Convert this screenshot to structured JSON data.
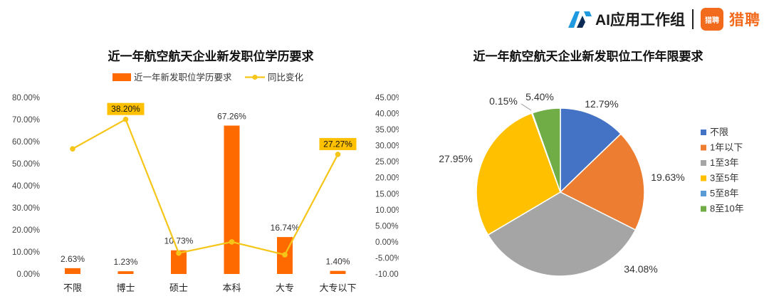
{
  "header": {
    "ai_group": "AI应用工作组",
    "liepin_badge": "猎聘",
    "liepin_name": "猎聘"
  },
  "chart_data": [
    {
      "type": "bar",
      "title": "近一年航空航天企业新发职位学历要求",
      "categories": [
        "不限",
        "博士",
        "硕士",
        "本科",
        "大专",
        "大专以下"
      ],
      "series": [
        {
          "name": "近一年新发职位学历要求",
          "kind": "bar",
          "axis": "left",
          "color": "#ff6a00",
          "values": [
            2.63,
            1.23,
            10.73,
            67.26,
            16.74,
            1.4
          ],
          "labels": [
            "2.63%",
            "1.23%",
            "10.73%",
            "67.26%",
            "16.74%",
            "1.40%"
          ]
        },
        {
          "name": "同比变化",
          "kind": "line",
          "axis": "right",
          "color": "#f5c518",
          "values": [
            29.0,
            38.2,
            -3.5,
            0.0,
            -4.0,
            27.27
          ],
          "highlight_labels": [
            {
              "index": 1,
              "text": "38.20%"
            },
            {
              "index": 5,
              "text": "27.27%"
            }
          ]
        }
      ],
      "y_left": {
        "min": 0,
        "max": 80,
        "step": 10,
        "ticks": [
          "0.00%",
          "10.00%",
          "20.00%",
          "30.00%",
          "40.00%",
          "50.00%",
          "60.00%",
          "70.00%",
          "80.00%"
        ]
      },
      "y_right": {
        "min": -10,
        "max": 45,
        "step": 5,
        "ticks": [
          "-10.00%",
          "-5.00%",
          "0.00%",
          "5.00%",
          "10.00%",
          "15.00%",
          "20.00%",
          "25.00%",
          "30.00%",
          "35.00%",
          "40.00%",
          "45.00%"
        ]
      },
      "legend": "top"
    },
    {
      "type": "pie",
      "title": "近一年航空航天企业新发职位工作年限要求",
      "labels": [
        "不限",
        "1年以下",
        "1至3年",
        "3至5年",
        "5至8年",
        "8至10年"
      ],
      "values": [
        12.79,
        19.63,
        34.08,
        27.95,
        0.15,
        5.4
      ],
      "value_labels": [
        "12.79%",
        "19.63%",
        "34.08%",
        "27.95%",
        "0.15%",
        "5.40%"
      ],
      "colors": [
        "#4472c4",
        "#ed7d31",
        "#a5a5a5",
        "#ffc000",
        "#5b9bd5",
        "#70ad47"
      ],
      "legend": "right"
    }
  ]
}
